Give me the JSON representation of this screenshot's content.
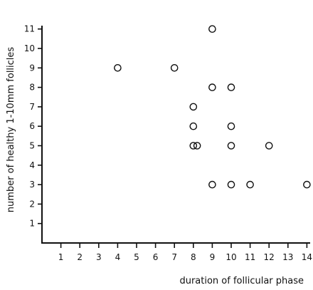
{
  "chart_data": {
    "type": "scatter",
    "title": "",
    "xlabel": "duration of follicular phase",
    "ylabel": "number of healthy 1-10mm follicles",
    "xlim": [
      0,
      14
    ],
    "ylim": [
      0,
      11
    ],
    "x_ticks": [
      "1",
      "2",
      "3",
      "4",
      "5",
      "6",
      "7",
      "8",
      "9",
      "10",
      "11",
      "12",
      "13",
      "14"
    ],
    "y_ticks": [
      "1",
      "2",
      "3",
      "4",
      "5",
      "6",
      "7",
      "8",
      "9",
      "10",
      "11"
    ],
    "grid": false,
    "marker": "open-circle",
    "series": [
      {
        "points": [
          {
            "x": 4,
            "y": 9
          },
          {
            "x": 7,
            "y": 9
          },
          {
            "x": 9,
            "y": 11
          },
          {
            "x": 9,
            "y": 8
          },
          {
            "x": 10,
            "y": 8
          },
          {
            "x": 8,
            "y": 7
          },
          {
            "x": 8,
            "y": 6
          },
          {
            "x": 10,
            "y": 6
          },
          {
            "x": 8,
            "y": 5
          },
          {
            "x": 8.2,
            "y": 5
          },
          {
            "x": 10,
            "y": 5
          },
          {
            "x": 12,
            "y": 5
          },
          {
            "x": 9,
            "y": 3
          },
          {
            "x": 10,
            "y": 3
          },
          {
            "x": 11,
            "y": 3
          },
          {
            "x": 14,
            "y": 3
          }
        ]
      }
    ]
  }
}
